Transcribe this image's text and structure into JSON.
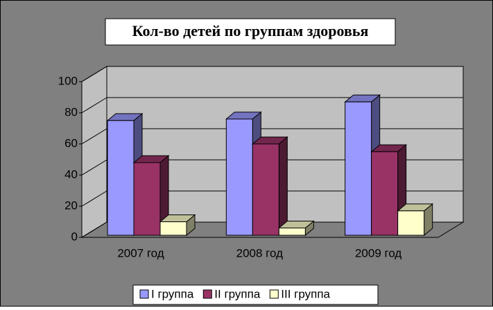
{
  "chart_data": {
    "type": "bar3d",
    "title": "Кол-во детей по группам здоровья",
    "categories": [
      "2007 год",
      "2008 год",
      "2009 год"
    ],
    "series": [
      {
        "name": "I группа",
        "color": "#9999ff",
        "values": [
          75,
          76,
          87
        ]
      },
      {
        "name": "II группа",
        "color": "#993366",
        "values": [
          48,
          60,
          55
        ]
      },
      {
        "name": "III группа",
        "color": "#ffffcc",
        "values": [
          10,
          6,
          17
        ]
      }
    ],
    "ylim": [
      0,
      100
    ],
    "yticks": [
      0,
      20,
      40,
      60,
      80,
      100
    ],
    "grid": true,
    "legend": "bottom"
  }
}
